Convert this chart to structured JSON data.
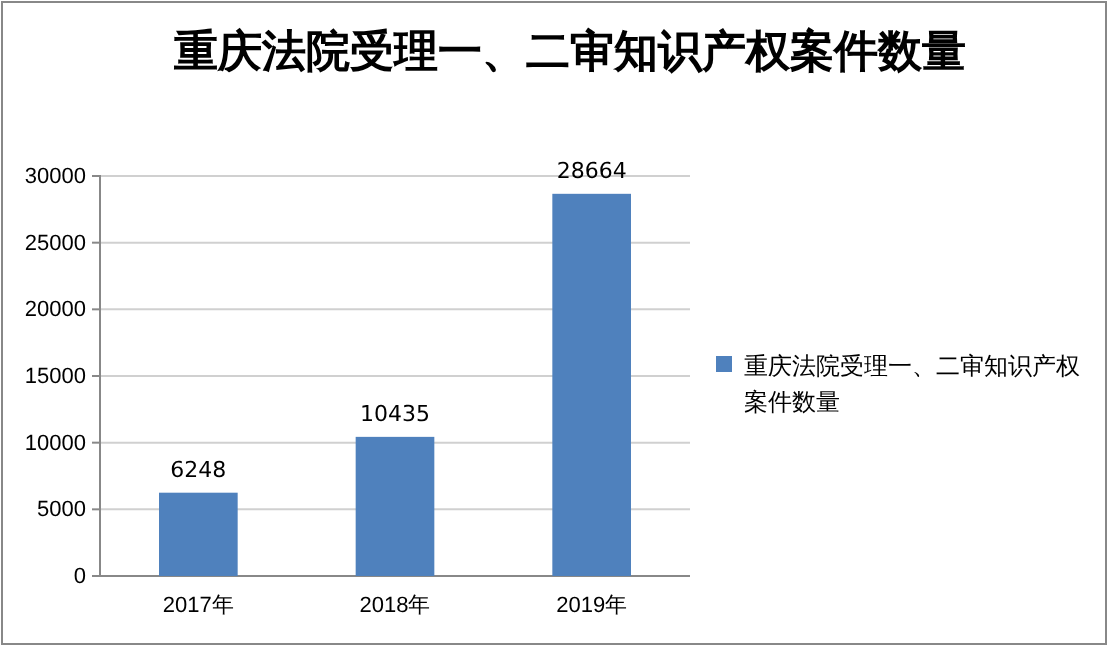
{
  "chart_data": {
    "type": "bar",
    "title": "重庆法院受理一、二审知识产权案件数量",
    "categories": [
      "2017年",
      "2018年",
      "2019年"
    ],
    "series": [
      {
        "name": "重庆法院受理一、二审知识产权案件数量",
        "color": "#4f81bd",
        "values": [
          6248,
          10435,
          28664
        ]
      }
    ],
    "ylim": [
      0,
      30000
    ],
    "yticks": [
      0,
      5000,
      10000,
      15000,
      20000,
      25000,
      30000
    ],
    "grid": "y",
    "legend": "right",
    "data_labels": true
  }
}
